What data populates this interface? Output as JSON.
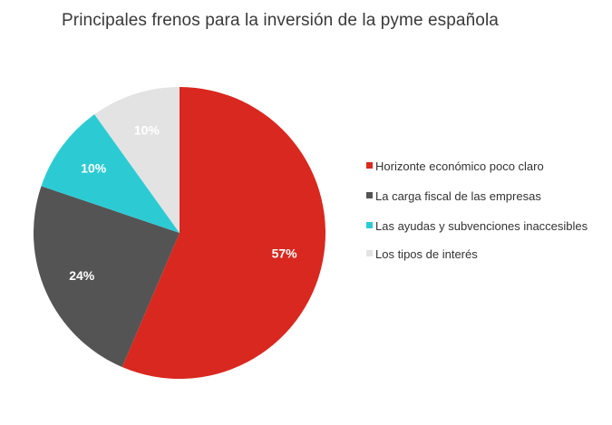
{
  "title": "Principales frenos para la inversión de la pyme española",
  "chart_data": {
    "type": "pie",
    "title": "Principales frenos para la inversión de la pyme española",
    "start_angle_deg": 0,
    "direction": "clockwise",
    "legend_position": "right",
    "slices": [
      {
        "label": "Horizonte económico poco claro",
        "value": 57,
        "display": "57%",
        "color": "#d9281f"
      },
      {
        "label": "La carga fiscal de las empresas",
        "value": 24,
        "display": "24%",
        "color": "#545454"
      },
      {
        "label": "Las ayudas y subvenciones inaccesibles",
        "value": 10,
        "display": "10%",
        "color": "#2ccbd3"
      },
      {
        "label": "Los tipos de interés",
        "value": 10,
        "display": "10%",
        "color": "#e3e3e3"
      }
    ]
  }
}
